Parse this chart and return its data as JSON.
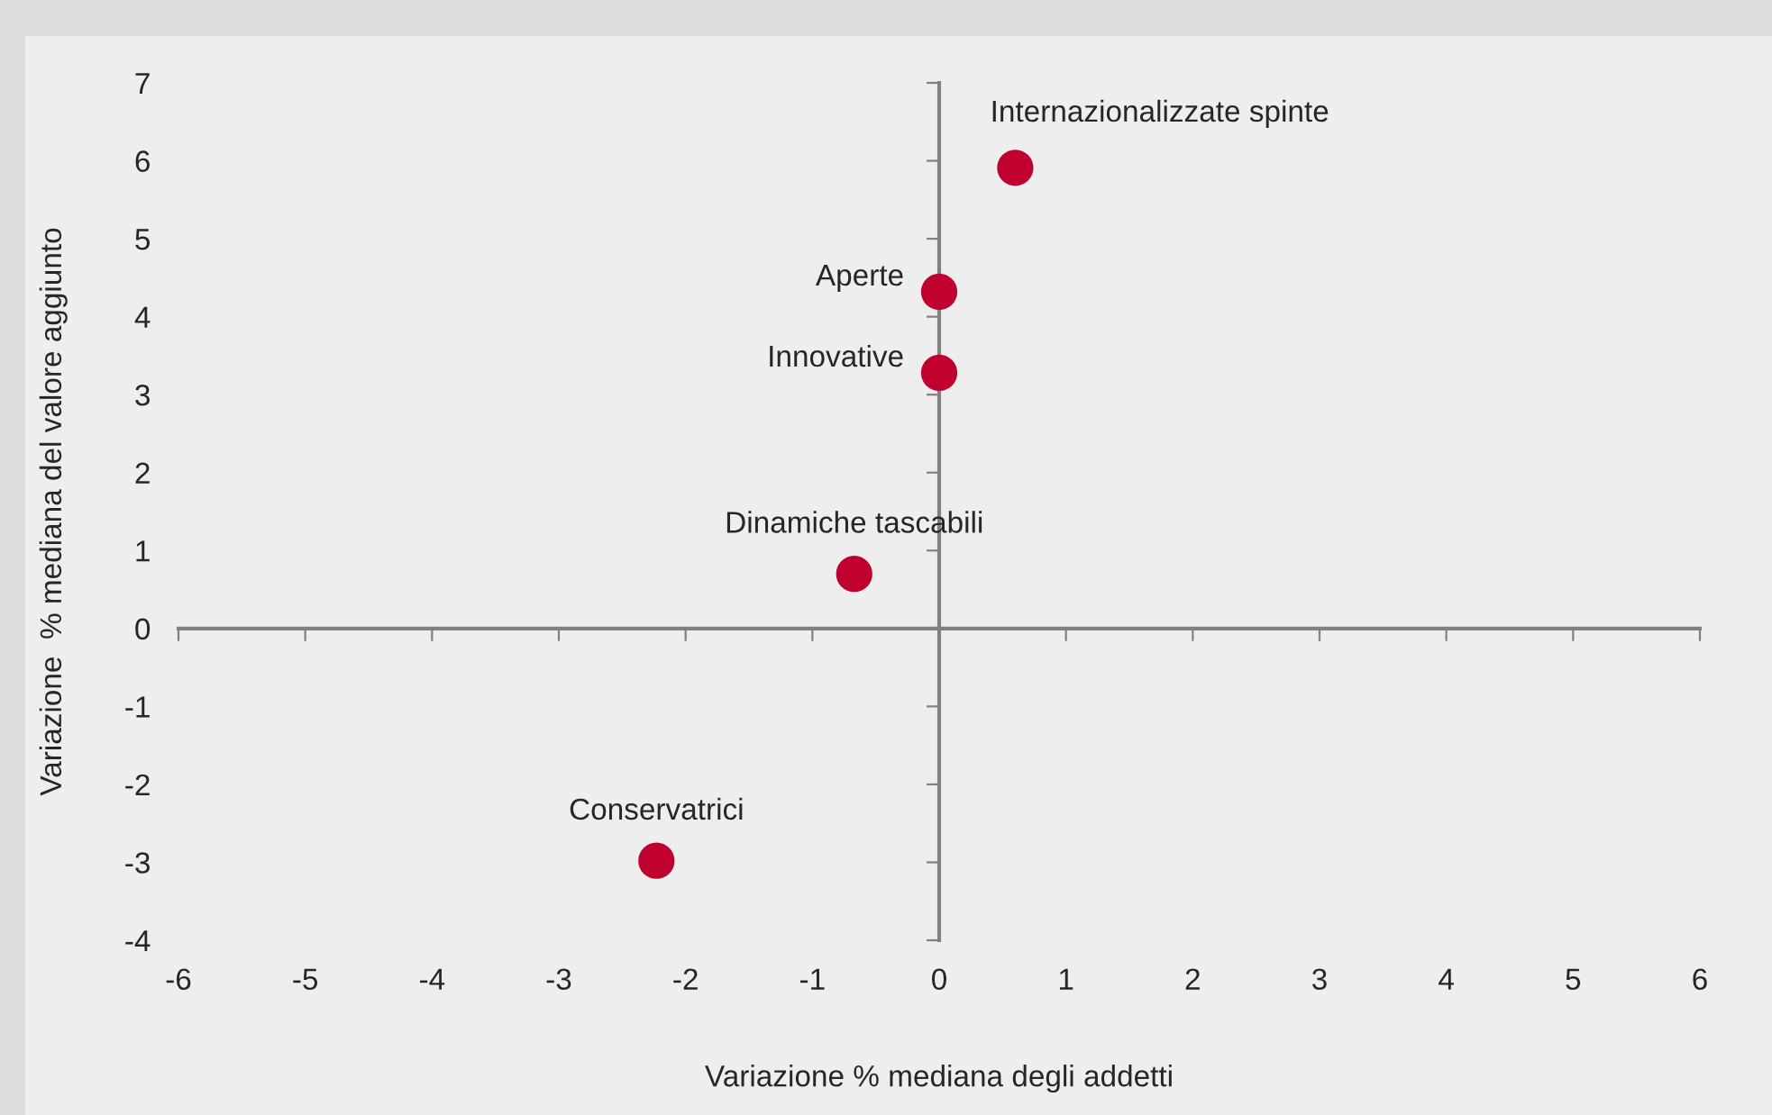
{
  "chart_data": {
    "type": "scatter",
    "xlabel": "Variazione % mediana degli addetti",
    "ylabel": "Variazione  % mediana del valore aggiunto",
    "x": [
      0.6,
      0,
      0,
      -0.67,
      -2.23
    ],
    "series": [
      {
        "color": "#c0002f",
        "values": [
          5.91,
          4.32,
          3.28,
          0.7,
          -2.98
        ]
      }
    ],
    "annotations": [
      {
        "text": "Internazionalizzate spinte",
        "x": 0.6,
        "y": 5.91
      },
      {
        "text": "Aperte",
        "x": 0,
        "y": 4.32
      },
      {
        "text": "Innovative",
        "x": 0,
        "y": 3.28
      },
      {
        "text": "Dinamiche tascabili",
        "x": -0.67,
        "y": 0.7
      },
      {
        "text": "Conservatrici",
        "x": -2.23,
        "y": -2.98
      }
    ],
    "xlim": [
      -6,
      6
    ],
    "xticks": [
      -6,
      -5,
      -4,
      -3,
      -2,
      -1,
      0,
      1,
      2,
      3,
      4,
      5,
      6
    ],
    "ylim": [
      -4,
      7
    ],
    "yticks": [
      -4,
      -3,
      -2,
      -1,
      0,
      1,
      2,
      3,
      4,
      5,
      6,
      7
    ],
    "marker": "circle",
    "legend": false
  }
}
